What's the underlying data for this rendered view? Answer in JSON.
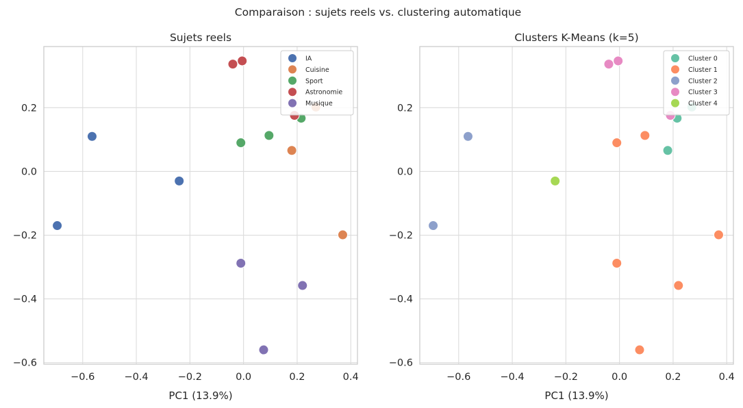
{
  "figure_title": "Comparaison : sujets reels vs. clustering automatique",
  "chart_data": [
    {
      "type": "scatter",
      "title": "Sujets reels",
      "xlabel": "PC1 (13.9%)",
      "ylabel": "",
      "xlim": [
        -0.745,
        0.425
      ],
      "ylim": [
        -0.605,
        0.392
      ],
      "xticks": [
        -0.6,
        -0.4,
        -0.2,
        0.0,
        0.2,
        0.4
      ],
      "xtick_labels": [
        "−0.6",
        "−0.4",
        "−0.2",
        "0.0",
        "0.2",
        "0.4"
      ],
      "yticks": [
        -0.6,
        -0.4,
        -0.2,
        0.0,
        0.2
      ],
      "ytick_labels": [
        "−0.6",
        "−0.4",
        "−0.2",
        "0.0",
        "0.2"
      ],
      "grid": true,
      "legend_position": "top-right",
      "series": [
        {
          "name": "IA",
          "color": "#4c72b0",
          "points": [
            {
              "x": -0.565,
              "y": 0.11
            },
            {
              "x": -0.24,
              "y": -0.03
            },
            {
              "x": -0.695,
              "y": -0.17
            }
          ]
        },
        {
          "name": "Cuisine",
          "color": "#dd8452",
          "points": [
            {
              "x": 0.27,
              "y": 0.202
            },
            {
              "x": 0.18,
              "y": 0.066
            },
            {
              "x": 0.37,
              "y": -0.199
            }
          ]
        },
        {
          "name": "Sport",
          "color": "#55a868",
          "points": [
            {
              "x": 0.215,
              "y": 0.167
            },
            {
              "x": 0.095,
              "y": 0.113
            },
            {
              "x": -0.01,
              "y": 0.09
            }
          ]
        },
        {
          "name": "Astronomie",
          "color": "#c44e52",
          "points": [
            {
              "x": -0.04,
              "y": 0.337
            },
            {
              "x": -0.005,
              "y": 0.347
            },
            {
              "x": 0.19,
              "y": 0.176
            }
          ]
        },
        {
          "name": "Musique",
          "color": "#8172b3",
          "points": [
            {
              "x": -0.01,
              "y": -0.288
            },
            {
              "x": 0.22,
              "y": -0.358
            },
            {
              "x": 0.075,
              "y": -0.56
            }
          ]
        }
      ]
    },
    {
      "type": "scatter",
      "title": "Clusters K-Means (k=5)",
      "xlabel": "PC1 (13.9%)",
      "ylabel": "",
      "xlim": [
        -0.745,
        0.425
      ],
      "ylim": [
        -0.605,
        0.392
      ],
      "xticks": [
        -0.6,
        -0.4,
        -0.2,
        0.0,
        0.2,
        0.4
      ],
      "xtick_labels": [
        "−0.6",
        "−0.4",
        "−0.2",
        "0.0",
        "0.2",
        "0.4"
      ],
      "yticks": [
        -0.6,
        -0.4,
        -0.2,
        0.0,
        0.2
      ],
      "ytick_labels": [
        "−0.6",
        "−0.4",
        "−0.2",
        "0.0",
        "0.2"
      ],
      "grid": true,
      "legend_position": "top-right",
      "series": [
        {
          "name": "Cluster 0",
          "color": "#66c2a5",
          "points": [
            {
              "x": 0.27,
              "y": 0.202
            },
            {
              "x": 0.215,
              "y": 0.167
            },
            {
              "x": 0.18,
              "y": 0.066
            }
          ]
        },
        {
          "name": "Cluster 1",
          "color": "#fc8d62",
          "points": [
            {
              "x": 0.095,
              "y": 0.113
            },
            {
              "x": -0.01,
              "y": 0.09
            },
            {
              "x": 0.37,
              "y": -0.199
            },
            {
              "x": -0.01,
              "y": -0.288
            },
            {
              "x": 0.22,
              "y": -0.358
            },
            {
              "x": 0.075,
              "y": -0.56
            }
          ]
        },
        {
          "name": "Cluster 2",
          "color": "#8da0cb",
          "points": [
            {
              "x": -0.565,
              "y": 0.11
            },
            {
              "x": -0.695,
              "y": -0.17
            }
          ]
        },
        {
          "name": "Cluster 3",
          "color": "#e78ac3",
          "points": [
            {
              "x": -0.04,
              "y": 0.337
            },
            {
              "x": -0.005,
              "y": 0.347
            },
            {
              "x": 0.19,
              "y": 0.176
            }
          ]
        },
        {
          "name": "Cluster 4",
          "color": "#a6d854",
          "points": [
            {
              "x": -0.24,
              "y": -0.03
            }
          ]
        }
      ]
    }
  ]
}
